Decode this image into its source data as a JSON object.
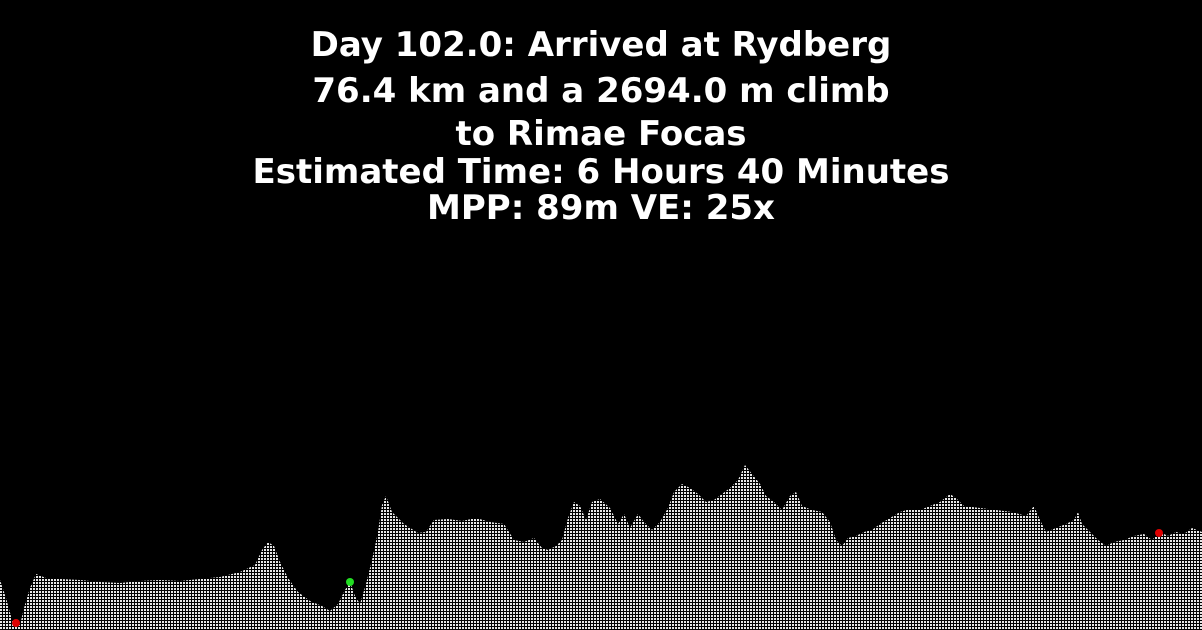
{
  "header": {
    "line1": "Day 102.0: Arrived at Rydberg",
    "line2": "76.4 km and a 2694.0 m climb",
    "line3": "to Rimae Focas",
    "line4": "Estimated Time: 6 Hours 40 Minutes",
    "line5": "MPP: 89m VE: 25x"
  },
  "colors": {
    "background": "#000000",
    "terrain": "#e8e8e8",
    "marker_red": "#e00000",
    "marker_green": "#22dd22"
  }
}
